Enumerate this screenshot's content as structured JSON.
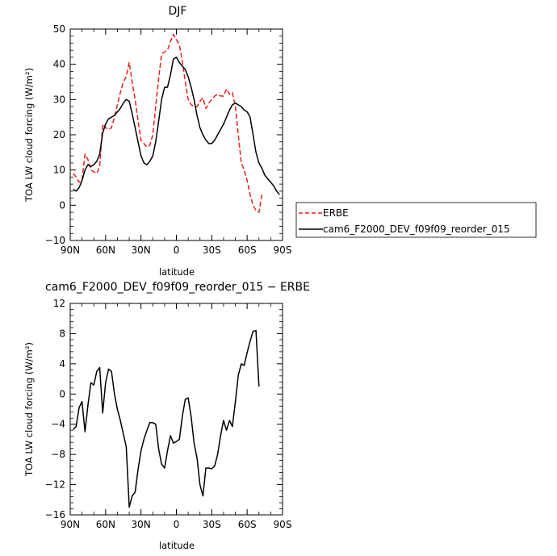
{
  "chart_data": [
    {
      "type": "line",
      "title": "DJF",
      "xlabel": "latitude",
      "ylabel": "TOA LW cloud forcing (W/m²)",
      "xlim": [
        90,
        -90
      ],
      "ylim": [
        -10,
        50
      ],
      "x_ticks": [
        90,
        60,
        30,
        0,
        -30,
        -60,
        -90
      ],
      "x_tick_labels": [
        "90N",
        "60N",
        "30N",
        "0",
        "30S",
        "60S",
        "90S"
      ],
      "y_ticks": [
        -10,
        0,
        10,
        20,
        30,
        40,
        50
      ],
      "y_tick_labels": [
        "−10",
        "0",
        "10",
        "20",
        "30",
        "40",
        "50"
      ],
      "legend_position": "right",
      "series": [
        {
          "name": "ERBE",
          "color": "#e8201c",
          "style": "dashed",
          "x": [
            87.5,
            85,
            82.5,
            80,
            77.5,
            75,
            72.5,
            70,
            67.5,
            65,
            62.5,
            60,
            57.5,
            55,
            52.5,
            50,
            47.5,
            45,
            42.5,
            40,
            37.5,
            35,
            32.5,
            30,
            27.5,
            25,
            22.5,
            20,
            17.5,
            15,
            12.5,
            10,
            7.5,
            5,
            2.5,
            0,
            -2.5,
            -5,
            -7.5,
            -10,
            -12.5,
            -15,
            -17.5,
            -20,
            -22.5,
            -25,
            -27.5,
            -30,
            -32.5,
            -35,
            -37.5,
            -40,
            -42.5,
            -45,
            -47.5,
            -50,
            -52.5,
            -55,
            -57.5,
            -60,
            -62.5,
            -65,
            -67.5,
            -70,
            -72.5,
            -75,
            -77.5,
            -80,
            -82.5,
            -85,
            -87.5
          ],
          "y": [
            9.0,
            8.0,
            6.5,
            7.0,
            14.5,
            13.0,
            10.0,
            9.5,
            9.0,
            11.0,
            23.0,
            22.0,
            21.5,
            22.0,
            25.0,
            28.5,
            32.0,
            35.0,
            36.5,
            40.5,
            35.0,
            30.0,
            24.0,
            18.5,
            17.5,
            16.5,
            17.0,
            20.0,
            28.0,
            36.0,
            43.0,
            43.5,
            44.0,
            46.5,
            48.5,
            47.0,
            45.5,
            41.0,
            35.0,
            30.0,
            28.5,
            28.0,
            28.0,
            29.5,
            30.5,
            27.5,
            29.0,
            30.0,
            31.0,
            31.5,
            31.0,
            31.0,
            33.0,
            31.5,
            32.0,
            28.0,
            20.0,
            12.0,
            10.0,
            7.0,
            3.0,
            0.0,
            -1.5,
            -2.0,
            3.0,
            0,
            0,
            0,
            0,
            0,
            0
          ]
        },
        {
          "name": "cam6_F2000_DEV_f09f09_reorder_015",
          "color": "#000000",
          "style": "solid",
          "x": [
            87.5,
            85,
            82.5,
            80,
            77.5,
            75,
            72.5,
            70,
            67.5,
            65,
            62.5,
            60,
            57.5,
            55,
            52.5,
            50,
            47.5,
            45,
            42.5,
            40,
            37.5,
            35,
            32.5,
            30,
            27.5,
            25,
            22.5,
            20,
            17.5,
            15,
            12.5,
            10,
            7.5,
            5,
            2.5,
            0,
            -2.5,
            -5,
            -7.5,
            -10,
            -12.5,
            -15,
            -17.5,
            -20,
            -22.5,
            -25,
            -27.5,
            -30,
            -32.5,
            -35,
            -37.5,
            -40,
            -42.5,
            -45,
            -47.5,
            -50,
            -52.5,
            -55,
            -57.5,
            -60,
            -62.5,
            -65,
            -67.5,
            -70,
            -72.5,
            -75,
            -77.5,
            -80,
            -82.5,
            -85,
            -87.5
          ],
          "y": [
            4.5,
            4.0,
            5.0,
            7.0,
            10.0,
            11.5,
            11.0,
            11.5,
            12.5,
            14.5,
            20.5,
            23.0,
            24.5,
            25.0,
            25.5,
            26.5,
            27.5,
            29.0,
            30.0,
            29.5,
            26.0,
            22.0,
            18.0,
            14.0,
            12.0,
            11.5,
            12.5,
            14.0,
            18.0,
            24.0,
            30.0,
            33.5,
            33.5,
            37.0,
            41.5,
            42.0,
            40.5,
            39.5,
            38.5,
            36.5,
            33.5,
            30.0,
            25.5,
            22.0,
            20.0,
            18.5,
            17.5,
            17.5,
            18.5,
            20.0,
            21.5,
            23.0,
            25.0,
            27.0,
            28.5,
            29.0,
            28.5,
            28.0,
            27.0,
            26.5,
            25.0,
            20.0,
            15.0,
            12.0,
            10.5,
            8.5,
            7.5,
            6.5,
            5.5,
            4.0,
            3.0
          ]
        }
      ]
    },
    {
      "type": "line",
      "title": "cam6_F2000_DEV_f09f09_reorder_015 − ERBE",
      "xlabel": "latitude",
      "ylabel": "TOA LW cloud forcing (W/m²)",
      "xlim": [
        90,
        -90
      ],
      "ylim": [
        -16,
        12
      ],
      "x_ticks": [
        90,
        60,
        30,
        0,
        -30,
        -60,
        -90
      ],
      "x_tick_labels": [
        "90N",
        "60N",
        "30N",
        "0",
        "30S",
        "60S",
        "90S"
      ],
      "y_ticks": [
        -16,
        -12,
        -8,
        -4,
        0,
        4,
        8,
        12
      ],
      "y_tick_labels": [
        "−16",
        "−12",
        "−8",
        "−4",
        "0",
        "4",
        "8",
        "12"
      ],
      "series": [
        {
          "color": "#000000",
          "style": "solid",
          "x": [
            87.5,
            85,
            82.5,
            80,
            77.5,
            75,
            72.5,
            70,
            67.5,
            65,
            62.5,
            60,
            57.5,
            55,
            52.5,
            50,
            47.5,
            45,
            42.5,
            40,
            37.5,
            35,
            32.5,
            30,
            27.5,
            25,
            22.5,
            20,
            17.5,
            15,
            12.5,
            10,
            7.5,
            5,
            2.5,
            0,
            -2.5,
            -5,
            -7.5,
            -10,
            -12.5,
            -15,
            -17.5,
            -20,
            -22.5,
            -25,
            -27.5,
            -30,
            -32.5,
            -35,
            -37.5,
            -40,
            -42.5,
            -45,
            -47.5,
            -50,
            -52.5,
            -55,
            -57.5,
            -60,
            -62.5,
            -65,
            -67.5,
            -70,
            -72.5,
            -75,
            -77.5,
            -80,
            -82.5,
            -85,
            -87.5
          ],
          "y": [
            -4.7,
            -4.3,
            -1.8,
            -1.0,
            -5.0,
            -1.5,
            1.5,
            1.2,
            3.0,
            3.5,
            -2.5,
            1.5,
            3.3,
            3.0,
            0.0,
            -2.0,
            -3.5,
            -5.3,
            -7.0,
            -15.0,
            -13.5,
            -13.0,
            -10.0,
            -7.5,
            -6.0,
            -4.8,
            -3.8,
            -3.8,
            -4.0,
            -7.3,
            -9.3,
            -9.8,
            -7.5,
            -5.5,
            -6.5,
            -6.3,
            -6.0,
            -3.0,
            -0.7,
            -0.5,
            -3.0,
            -6.5,
            -8.5,
            -12.0,
            -13.5,
            -9.8,
            -9.8,
            -9.9,
            -9.5,
            -8.0,
            -5.5,
            -3.5,
            -4.8,
            -3.5,
            -4.3,
            -1.0,
            2.5,
            4.0,
            3.8,
            5.5,
            7.0,
            8.3,
            8.4,
            1.0,
            1.0,
            1.0,
            1.0,
            1.0,
            1.0,
            1.0,
            1.0
          ]
        }
      ]
    }
  ]
}
